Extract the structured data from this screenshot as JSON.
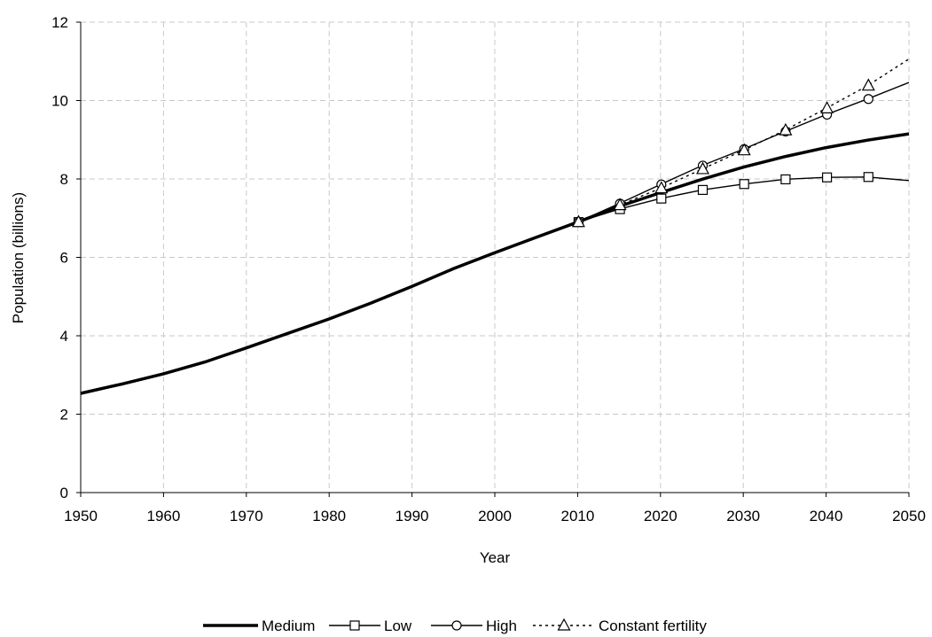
{
  "chart_data": {
    "type": "line",
    "title": "",
    "xlabel": "Year",
    "ylabel": "Population (billions)",
    "xlim": [
      1950,
      2050
    ],
    "ylim": [
      0,
      12
    ],
    "xticks": [
      1950,
      1960,
      1970,
      1980,
      1990,
      2000,
      2010,
      2020,
      2030,
      2040,
      2050
    ],
    "yticks": [
      0,
      2,
      4,
      6,
      8,
      10,
      12
    ],
    "grid": true,
    "legend_position": "bottom",
    "series": [
      {
        "name": "Medium",
        "style": "thick-solid",
        "marker": "none",
        "x": [
          1950,
          1955,
          1960,
          1965,
          1970,
          1975,
          1980,
          1985,
          1990,
          1995,
          2000,
          2005,
          2010,
          2015,
          2020,
          2025,
          2030,
          2035,
          2040,
          2045,
          2050
        ],
        "values": [
          2.53,
          2.77,
          3.03,
          3.33,
          3.69,
          4.06,
          4.43,
          4.83,
          5.26,
          5.71,
          6.12,
          6.51,
          6.9,
          7.3,
          7.65,
          7.99,
          8.3,
          8.57,
          8.8,
          8.99,
          9.15
        ]
      },
      {
        "name": "Low",
        "style": "solid",
        "marker": "square",
        "x": [
          2010,
          2015,
          2020,
          2025,
          2030,
          2035,
          2040,
          2045,
          2050
        ],
        "values": [
          6.9,
          7.23,
          7.5,
          7.72,
          7.87,
          7.99,
          8.04,
          8.05,
          7.96
        ]
      },
      {
        "name": "High",
        "style": "solid",
        "marker": "circle",
        "x": [
          2010,
          2015,
          2020,
          2025,
          2030,
          2035,
          2040,
          2045,
          2050
        ],
        "values": [
          6.9,
          7.37,
          7.86,
          8.34,
          8.76,
          9.21,
          9.64,
          10.04,
          10.46
        ]
      },
      {
        "name": "Constant fertility",
        "style": "dotted",
        "marker": "triangle",
        "x": [
          2010,
          2015,
          2020,
          2025,
          2030,
          2035,
          2040,
          2045,
          2050
        ],
        "values": [
          6.9,
          7.33,
          7.76,
          8.25,
          8.73,
          9.24,
          9.8,
          10.38,
          11.06
        ]
      }
    ]
  }
}
